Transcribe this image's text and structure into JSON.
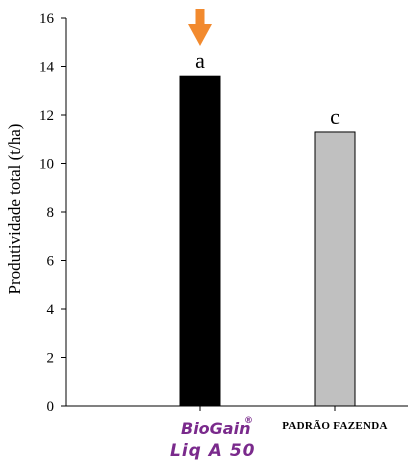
{
  "chart_data": {
    "type": "bar",
    "title": "",
    "xlabel": "",
    "ylabel": "Produtividade total (t/ha)",
    "ylim": [
      0,
      16
    ],
    "yticks": [
      0,
      2,
      4,
      6,
      8,
      10,
      12,
      14,
      16
    ],
    "grid": false,
    "categories": [
      "BioGain® Liq A 50",
      "PADRÃO FAZENDA"
    ],
    "values": [
      13.6,
      11.3
    ],
    "bar_colors": [
      "#000000",
      "#c0c0c0"
    ],
    "significance_letters": [
      "a",
      "c"
    ],
    "highlight_marker": {
      "category_index": 0,
      "shape": "down-arrow",
      "color": "#f28a2e"
    },
    "category_logo": {
      "category_index": 0,
      "line1": "BioGain",
      "registered": "®",
      "line2": "Liq A 50",
      "color": "#7a2a8c"
    }
  }
}
